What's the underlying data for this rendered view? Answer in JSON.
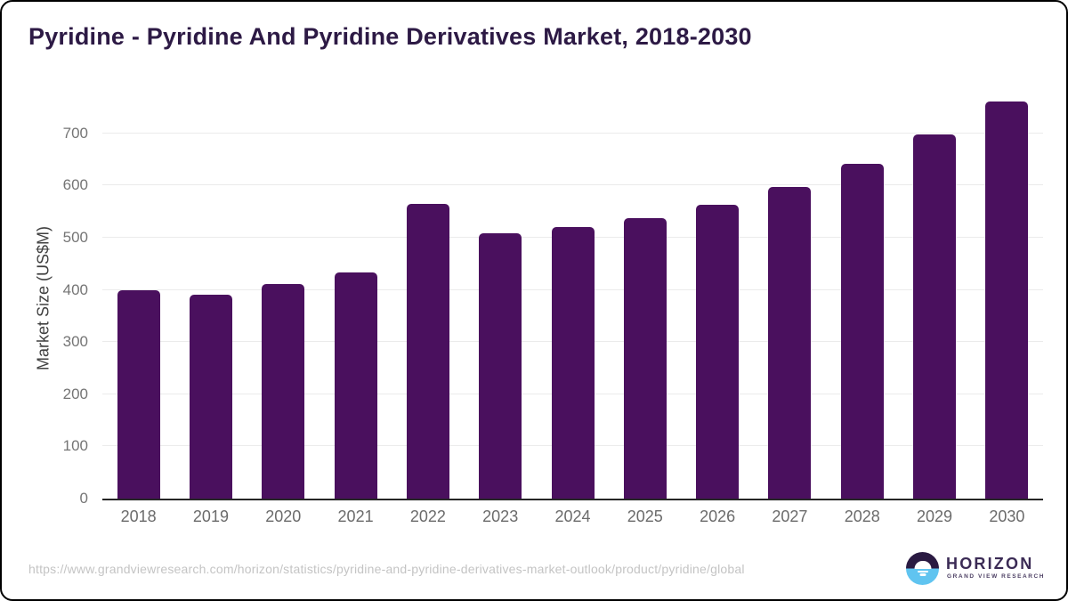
{
  "title": "Pyridine - Pyridine And Pyridine Derivatives Market, 2018-2030",
  "chart_data": {
    "type": "bar",
    "categories": [
      "2018",
      "2019",
      "2020",
      "2021",
      "2022",
      "2023",
      "2024",
      "2025",
      "2026",
      "2027",
      "2028",
      "2029",
      "2030"
    ],
    "values": [
      400,
      391,
      412,
      434,
      565,
      509,
      520,
      538,
      563,
      598,
      641,
      698,
      761
    ],
    "title": "Pyridine - Pyridine And Pyridine Derivatives Market, 2018-2030",
    "xlabel": "",
    "ylabel": "Market Size (US$M)",
    "yticks": [
      0,
      100,
      200,
      300,
      400,
      500,
      600,
      700
    ],
    "ylim": [
      0,
      768
    ],
    "grid": "horizontal",
    "legend": "none",
    "bar_color": "#4a105e"
  },
  "colors": {
    "bar": "#4a105e",
    "title_text": "#2d1a45",
    "axis_line": "#262626",
    "gridline": "#ebebeb",
    "x_tick_text": "#6b6b6b",
    "y_tick_text": "#757575",
    "footer_text": "#c4c4c4",
    "logo_purple": "#3b2b55",
    "logo_circle_top": "#2a1a42",
    "logo_circle_bottom": "#60c4f0"
  },
  "footer": {
    "source_url": "https://www.grandviewresearch.com/horizon/statistics/pyridine-and-pyridine-derivatives-market-outlook/product/pyridine/global",
    "logo": {
      "name": "HORIZON",
      "subtitle": "GRAND VIEW RESEARCH",
      "icon": "horizon-sun-icon"
    }
  }
}
